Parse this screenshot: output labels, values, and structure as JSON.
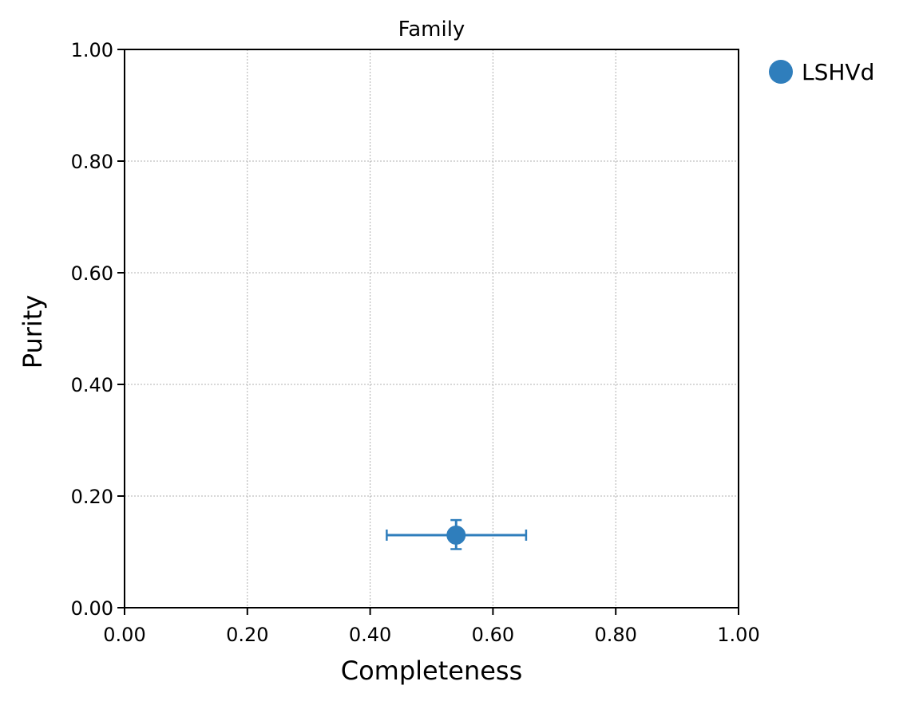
{
  "chart_data": {
    "type": "scatter",
    "title": "Family",
    "xlabel": "Completeness",
    "ylabel": "Purity",
    "xlim": [
      0,
      1
    ],
    "ylim": [
      0,
      1
    ],
    "grid": true,
    "legend_position": "outside-top-right",
    "x_ticks": [
      "0.00",
      "0.20",
      "0.40",
      "0.60",
      "0.80",
      "1.00"
    ],
    "y_ticks": [
      "0.00",
      "0.20",
      "0.40",
      "0.60",
      "0.80",
      "1.00"
    ],
    "series": [
      {
        "name": "LSHVd",
        "color": "#2f7ebc",
        "points": [
          {
            "x": 0.54,
            "y": 0.13,
            "x_err": [
              0.427,
              0.654
            ],
            "y_err": [
              0.105,
              0.157
            ]
          }
        ]
      }
    ]
  }
}
